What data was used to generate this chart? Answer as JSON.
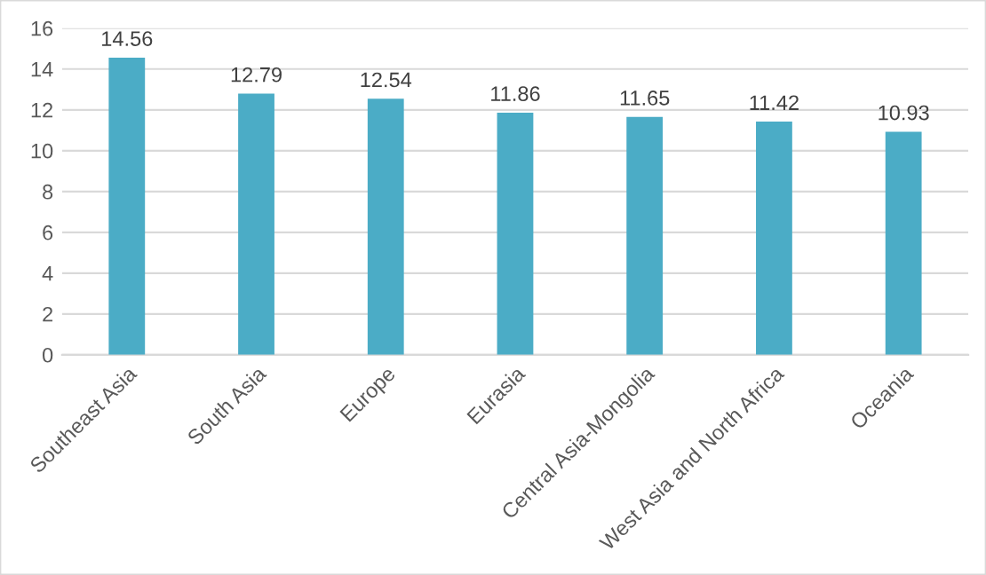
{
  "chart_data": {
    "type": "bar",
    "categories": [
      "Southeast Asia",
      "South Asia",
      "Europe",
      "Eurasia",
      "Central Asia-Mongolia",
      "West Asia and North Africa",
      "Oceania"
    ],
    "values": [
      14.56,
      12.79,
      12.54,
      11.86,
      11.65,
      11.42,
      10.93
    ],
    "color": "#4bacc6",
    "ylim": [
      0,
      16
    ],
    "yticks": [
      0,
      2,
      4,
      6,
      8,
      10,
      12,
      14,
      16
    ],
    "grid": "y",
    "data_labels": true,
    "legend": false
  }
}
